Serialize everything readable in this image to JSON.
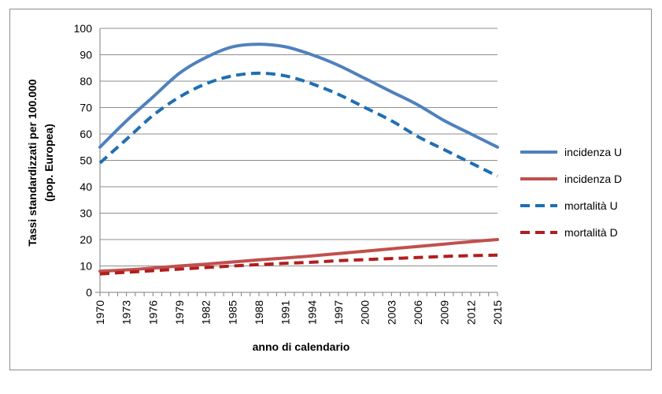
{
  "chart_data": {
    "type": "line",
    "xlabel": "anno di calendario",
    "ylabel_lines": [
      "Tassi standardizzati per 100.000",
      "(pop. Europea)"
    ],
    "ylim": [
      0,
      100
    ],
    "yticks": [
      0,
      10,
      20,
      30,
      40,
      50,
      60,
      70,
      80,
      90,
      100
    ],
    "x_tick_labels": [
      "1970",
      "1973",
      "1976",
      "1979",
      "1982",
      "1985",
      "1988",
      "1991",
      "1994",
      "1997",
      "2000",
      "2003",
      "2006",
      "2009",
      "2012",
      "2015"
    ],
    "grid": "horizontal",
    "legend_position": "right",
    "series": [
      {
        "name": "incidenza U",
        "color": "#4f81bd",
        "style": "solid",
        "x": [
          1970,
          1973,
          1976,
          1979,
          1982,
          1985,
          1988,
          1991,
          1994,
          1997,
          2000,
          2003,
          2006,
          2009,
          2012,
          2015
        ],
        "values": [
          55,
          65,
          74,
          83,
          89,
          93,
          94,
          93,
          90,
          86,
          81,
          76,
          71,
          65,
          60,
          55
        ]
      },
      {
        "name": "incidenza D",
        "color": "#c0504d",
        "style": "solid",
        "x": [
          1970,
          1973,
          1976,
          1979,
          1982,
          1985,
          1988,
          1991,
          1994,
          1997,
          2000,
          2003,
          2006,
          2009,
          2012,
          2015
        ],
        "values": [
          8,
          8.5,
          9.2,
          10,
          10.7,
          11.5,
          12.3,
          13,
          13.8,
          14.7,
          15.6,
          16.5,
          17.4,
          18.3,
          19.2,
          20
        ]
      },
      {
        "name": "mortalità U",
        "color": "#1f6fb2",
        "style": "dashed",
        "x": [
          1970,
          1973,
          1976,
          1979,
          1982,
          1985,
          1988,
          1991,
          1994,
          1997,
          2000,
          2003,
          2006,
          2009,
          2012,
          2015
        ],
        "values": [
          49,
          58,
          67,
          74,
          79,
          82,
          83,
          82,
          79,
          75,
          70,
          65,
          59,
          54,
          49,
          44
        ]
      },
      {
        "name": "mortalità D",
        "color": "#b01e1e",
        "style": "dashed",
        "x": [
          1970,
          1973,
          1976,
          1979,
          1982,
          1985,
          1988,
          1991,
          1994,
          1997,
          2000,
          2003,
          2006,
          2009,
          2012,
          2015
        ],
        "values": [
          7,
          7.6,
          8.2,
          8.8,
          9.4,
          10,
          10.5,
          11,
          11.4,
          12,
          12.4,
          12.8,
          13.2,
          13.6,
          13.9,
          14.1
        ]
      }
    ]
  }
}
